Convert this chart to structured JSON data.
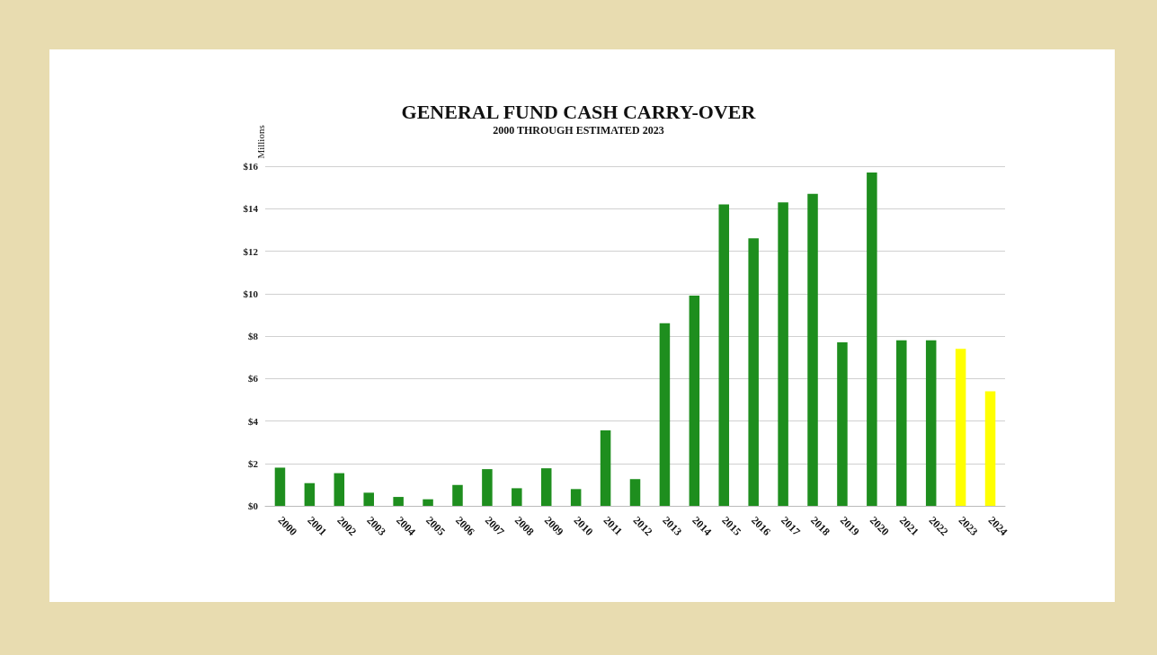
{
  "chart_data": {
    "type": "bar",
    "title": "GENERAL FUND CASH CARRY-OVER",
    "subtitle": "2000 THROUGH ESTIMATED 2023",
    "ylabel": "Millions",
    "categories": [
      "2000",
      "2001",
      "2002",
      "2003",
      "2004",
      "2005",
      "2006",
      "2007",
      "2008",
      "2009",
      "2010",
      "2011",
      "2012",
      "2013",
      "2014",
      "2015",
      "2016",
      "2017",
      "2018",
      "2019",
      "2020",
      "2021",
      "2022",
      "2023",
      "2024"
    ],
    "values": [
      1.8,
      1.07,
      1.54,
      0.62,
      0.42,
      0.31,
      0.98,
      1.73,
      0.83,
      1.77,
      0.79,
      3.56,
      1.26,
      8.6,
      9.9,
      14.2,
      12.6,
      14.3,
      14.7,
      7.7,
      15.7,
      7.8,
      7.8,
      7.4,
      5.4
    ],
    "colors": [
      "#1e8e1e",
      "#1e8e1e",
      "#1e8e1e",
      "#1e8e1e",
      "#1e8e1e",
      "#1e8e1e",
      "#1e8e1e",
      "#1e8e1e",
      "#1e8e1e",
      "#1e8e1e",
      "#1e8e1e",
      "#1e8e1e",
      "#1e8e1e",
      "#1e8e1e",
      "#1e8e1e",
      "#1e8e1e",
      "#1e8e1e",
      "#1e8e1e",
      "#1e8e1e",
      "#1e8e1e",
      "#1e8e1e",
      "#1e8e1e",
      "#1e8e1e",
      "#ffff00",
      "#ffff00"
    ],
    "ylim": [
      0,
      16
    ],
    "yticks": [
      {
        "value": 0,
        "label": "$0"
      },
      {
        "value": 2,
        "label": "$2"
      },
      {
        "value": 4,
        "label": "$4"
      },
      {
        "value": 6,
        "label": "$6"
      },
      {
        "value": 8,
        "label": "$8"
      },
      {
        "value": 10,
        "label": "$10"
      },
      {
        "value": 12,
        "label": "$12"
      },
      {
        "value": 14,
        "label": "$14"
      },
      {
        "value": 16,
        "label": "$16"
      }
    ],
    "grid": "y"
  }
}
